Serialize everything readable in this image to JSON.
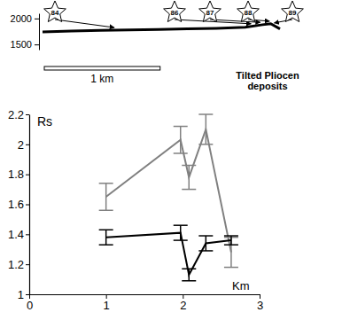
{
  "chart_data": [
    {
      "type": "line",
      "xlim": [
        0,
        2.05
      ],
      "ylim": [
        1400,
        2100
      ],
      "yticks": [
        1500,
        2000
      ],
      "tick_labels": "y",
      "x": [
        0,
        0.25,
        0.5,
        0.75,
        1.0,
        1.25,
        1.5,
        1.75,
        1.9,
        1.97,
        2.05
      ],
      "series": [
        {
          "color": "#000000",
          "values": [
            1740,
            1760,
            1770,
            1780,
            1790,
            1800,
            1810,
            1830,
            1880,
            1900,
            1800
          ]
        }
      ],
      "stations": [
        {
          "label": "84",
          "x": 0.62
        },
        {
          "label": "86",
          "x": 1.8
        },
        {
          "label": "87",
          "x": 1.88
        },
        {
          "label": "88",
          "x": 1.96
        },
        {
          "label": "89",
          "x": 2.0
        }
      ],
      "scale_bar": {
        "value": 1,
        "label": "1 km"
      },
      "annotation": [
        "Tilted Pliocen",
        "deposits"
      ]
    },
    {
      "type": "line",
      "y_label": "Rs",
      "x_label": "Km",
      "xlim": [
        0,
        3
      ],
      "ylim": [
        1,
        2.2
      ],
      "xticks": [
        0,
        1,
        2,
        3
      ],
      "yticks": [
        1,
        1.2,
        1.4,
        1.6,
        1.8,
        2,
        2.2
      ],
      "x": [
        1.0,
        1.97,
        2.08,
        2.3,
        2.63
      ],
      "series": [
        {
          "color": "#808080",
          "values": [
            1.65,
            2.03,
            1.78,
            2.1,
            1.28
          ],
          "errors": [
            0.09,
            0.09,
            0.08,
            0.1,
            0.1
          ]
        },
        {
          "color": "#000000",
          "values": [
            1.38,
            1.41,
            1.13,
            1.34,
            1.36
          ],
          "errors": [
            0.05,
            0.05,
            0.04,
            0.05,
            0.03
          ]
        }
      ]
    }
  ]
}
